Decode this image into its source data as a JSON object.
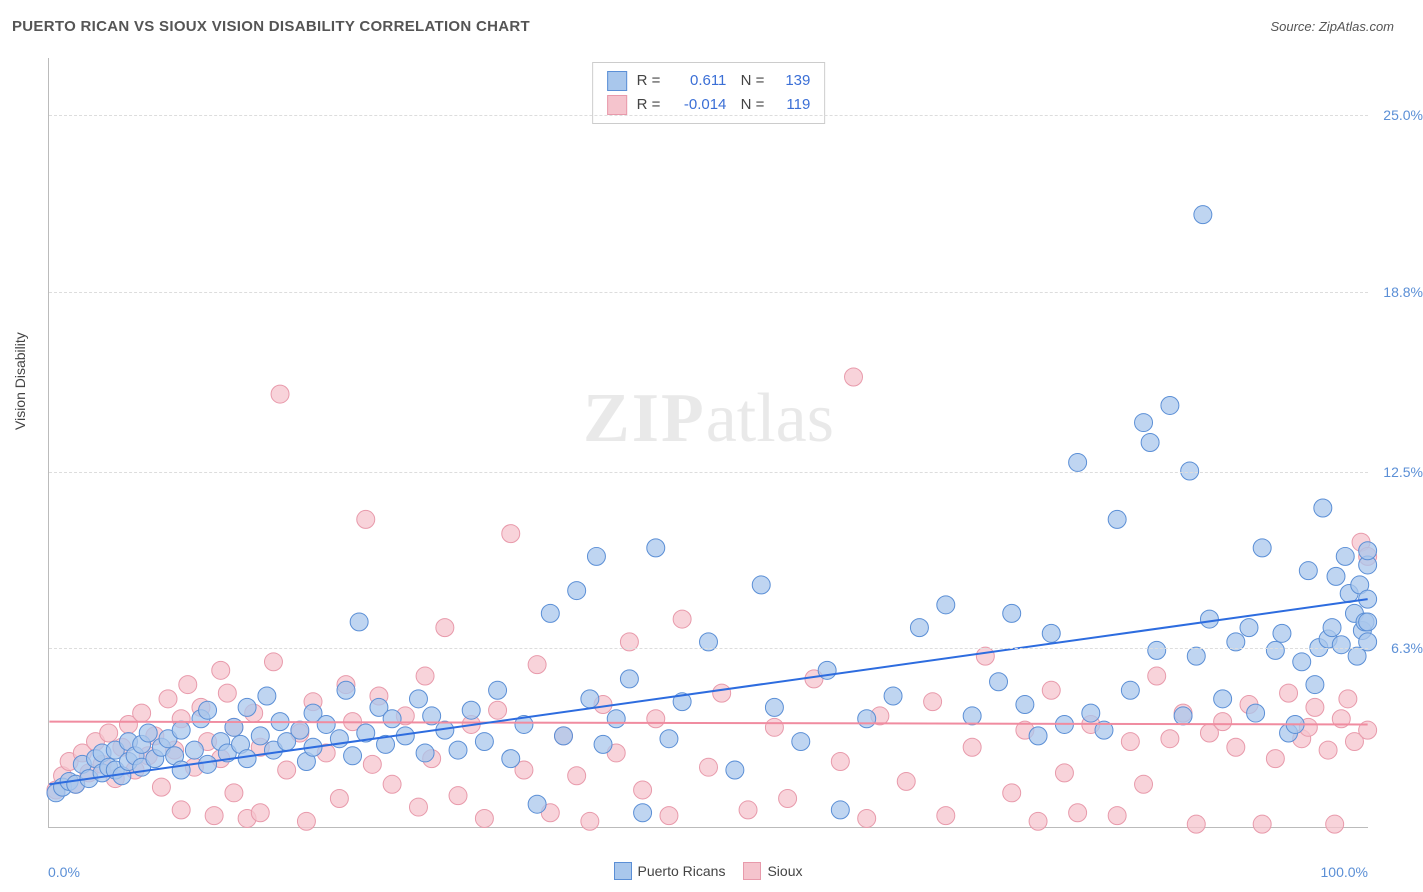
{
  "header": {
    "title": "PUERTO RICAN VS SIOUX VISION DISABILITY CORRELATION CHART",
    "source": "Source: ZipAtlas.com"
  },
  "watermark": {
    "left": "ZIP",
    "right": "atlas"
  },
  "chart": {
    "type": "scatter",
    "y_axis_title": "Vision Disability",
    "x_min_label": "0.0%",
    "x_max_label": "100.0%",
    "xlim": [
      0,
      100
    ],
    "ylim": [
      0,
      27
    ],
    "y_ticks": [
      {
        "v": 6.3,
        "label": "6.3%"
      },
      {
        "v": 12.5,
        "label": "12.5%"
      },
      {
        "v": 18.8,
        "label": "18.8%"
      },
      {
        "v": 25.0,
        "label": "25.0%"
      }
    ],
    "series": {
      "blue": {
        "name": "Puerto Ricans",
        "fill_color": "#a9c7ec",
        "stroke_color": "#5b8fd6",
        "marker_radius": 9,
        "marker_opacity": 0.75,
        "R": "0.611",
        "N": "139",
        "trend": {
          "x1": 0,
          "y1": 1.5,
          "x2": 100,
          "y2": 8.0,
          "color": "#2d6cdf",
          "width": 2
        },
        "points": [
          [
            0.5,
            1.2
          ],
          [
            1,
            1.4
          ],
          [
            1.5,
            1.6
          ],
          [
            2,
            1.5
          ],
          [
            2.5,
            2.2
          ],
          [
            3,
            1.7
          ],
          [
            3.5,
            2.4
          ],
          [
            4,
            1.9
          ],
          [
            4,
            2.6
          ],
          [
            4.5,
            2.1
          ],
          [
            5,
            2.0
          ],
          [
            5,
            2.7
          ],
          [
            5.5,
            1.8
          ],
          [
            6,
            2.3
          ],
          [
            6,
            3.0
          ],
          [
            6.5,
            2.5
          ],
          [
            7,
            2.1
          ],
          [
            7,
            2.9
          ],
          [
            7.5,
            3.3
          ],
          [
            8,
            2.4
          ],
          [
            8.5,
            2.8
          ],
          [
            9,
            3.1
          ],
          [
            9.5,
            2.5
          ],
          [
            10,
            3.4
          ],
          [
            10,
            2.0
          ],
          [
            11,
            2.7
          ],
          [
            11.5,
            3.8
          ],
          [
            12,
            2.2
          ],
          [
            12,
            4.1
          ],
          [
            13,
            3.0
          ],
          [
            13.5,
            2.6
          ],
          [
            14,
            3.5
          ],
          [
            14.5,
            2.9
          ],
          [
            15,
            4.2
          ],
          [
            15,
            2.4
          ],
          [
            16,
            3.2
          ],
          [
            16.5,
            4.6
          ],
          [
            17,
            2.7
          ],
          [
            17.5,
            3.7
          ],
          [
            18,
            3.0
          ],
          [
            19,
            3.4
          ],
          [
            19.5,
            2.3
          ],
          [
            20,
            4.0
          ],
          [
            20,
            2.8
          ],
          [
            21,
            3.6
          ],
          [
            22,
            3.1
          ],
          [
            22.5,
            4.8
          ],
          [
            23,
            2.5
          ],
          [
            23.5,
            7.2
          ],
          [
            24,
            3.3
          ],
          [
            25,
            4.2
          ],
          [
            25.5,
            2.9
          ],
          [
            26,
            3.8
          ],
          [
            27,
            3.2
          ],
          [
            28,
            4.5
          ],
          [
            28.5,
            2.6
          ],
          [
            29,
            3.9
          ],
          [
            30,
            3.4
          ],
          [
            31,
            2.7
          ],
          [
            32,
            4.1
          ],
          [
            33,
            3.0
          ],
          [
            34,
            4.8
          ],
          [
            35,
            2.4
          ],
          [
            36,
            3.6
          ],
          [
            37,
            0.8
          ],
          [
            38,
            7.5
          ],
          [
            39,
            3.2
          ],
          [
            40,
            8.3
          ],
          [
            41,
            4.5
          ],
          [
            41.5,
            9.5
          ],
          [
            42,
            2.9
          ],
          [
            43,
            3.8
          ],
          [
            44,
            5.2
          ],
          [
            45,
            0.5
          ],
          [
            46,
            9.8
          ],
          [
            47,
            3.1
          ],
          [
            48,
            4.4
          ],
          [
            50,
            6.5
          ],
          [
            52,
            2.0
          ],
          [
            54,
            8.5
          ],
          [
            55,
            4.2
          ],
          [
            57,
            3.0
          ],
          [
            59,
            5.5
          ],
          [
            60,
            0.6
          ],
          [
            62,
            3.8
          ],
          [
            64,
            4.6
          ],
          [
            66,
            7.0
          ],
          [
            68,
            7.8
          ],
          [
            70,
            3.9
          ],
          [
            72,
            5.1
          ],
          [
            73,
            7.5
          ],
          [
            74,
            4.3
          ],
          [
            75,
            3.2
          ],
          [
            76,
            6.8
          ],
          [
            77,
            3.6
          ],
          [
            78,
            12.8
          ],
          [
            79,
            4.0
          ],
          [
            80,
            3.4
          ],
          [
            81,
            10.8
          ],
          [
            82,
            4.8
          ],
          [
            83,
            14.2
          ],
          [
            83.5,
            13.5
          ],
          [
            84,
            6.2
          ],
          [
            85,
            14.8
          ],
          [
            86,
            3.9
          ],
          [
            86.5,
            12.5
          ],
          [
            87,
            6.0
          ],
          [
            87.5,
            21.5
          ],
          [
            88,
            7.3
          ],
          [
            89,
            4.5
          ],
          [
            90,
            6.5
          ],
          [
            91,
            7.0
          ],
          [
            91.5,
            4.0
          ],
          [
            92,
            9.8
          ],
          [
            93,
            6.2
          ],
          [
            93.5,
            6.8
          ],
          [
            94,
            3.3
          ],
          [
            94.5,
            3.6
          ],
          [
            95,
            5.8
          ],
          [
            95.5,
            9.0
          ],
          [
            96,
            5.0
          ],
          [
            96.3,
            6.3
          ],
          [
            96.6,
            11.2
          ],
          [
            97,
            6.6
          ],
          [
            97.3,
            7.0
          ],
          [
            97.6,
            8.8
          ],
          [
            98,
            6.4
          ],
          [
            98.3,
            9.5
          ],
          [
            98.6,
            8.2
          ],
          [
            99,
            7.5
          ],
          [
            99.2,
            6.0
          ],
          [
            99.4,
            8.5
          ],
          [
            99.6,
            6.9
          ],
          [
            99.8,
            7.2
          ],
          [
            100,
            9.2
          ],
          [
            100,
            9.7
          ],
          [
            100,
            8.0
          ],
          [
            100,
            7.2
          ],
          [
            100,
            6.5
          ]
        ]
      },
      "pink": {
        "name": "Sioux",
        "fill_color": "#f5c4cd",
        "stroke_color": "#e89aab",
        "marker_radius": 9,
        "marker_opacity": 0.75,
        "R": "-0.014",
        "N": "119",
        "trend": {
          "x1": 0,
          "y1": 3.7,
          "x2": 100,
          "y2": 3.6,
          "color": "#f08ca0",
          "width": 2
        },
        "points": [
          [
            0.5,
            1.3
          ],
          [
            1,
            1.8
          ],
          [
            1.5,
            2.3
          ],
          [
            2,
            1.5
          ],
          [
            2.5,
            2.6
          ],
          [
            3,
            1.9
          ],
          [
            3.5,
            3.0
          ],
          [
            4,
            2.2
          ],
          [
            4.5,
            3.3
          ],
          [
            5,
            1.7
          ],
          [
            5.5,
            2.8
          ],
          [
            6,
            3.6
          ],
          [
            6.5,
            2.0
          ],
          [
            7,
            4.0
          ],
          [
            7.5,
            2.5
          ],
          [
            8,
            3.2
          ],
          [
            8.5,
            1.4
          ],
          [
            9,
            4.5
          ],
          [
            9.5,
            2.7
          ],
          [
            10,
            3.8
          ],
          [
            10,
            0.6
          ],
          [
            10.5,
            5.0
          ],
          [
            11,
            2.1
          ],
          [
            11.5,
            4.2
          ],
          [
            12,
            3.0
          ],
          [
            12.5,
            0.4
          ],
          [
            13,
            5.5
          ],
          [
            13,
            2.4
          ],
          [
            13.5,
            4.7
          ],
          [
            14,
            1.2
          ],
          [
            14,
            3.5
          ],
          [
            15,
            0.3
          ],
          [
            15.5,
            4.0
          ],
          [
            16,
            2.8
          ],
          [
            16,
            0.5
          ],
          [
            17,
            5.8
          ],
          [
            17.5,
            15.2
          ],
          [
            18,
            2.0
          ],
          [
            19,
            3.3
          ],
          [
            19.5,
            0.2
          ],
          [
            20,
            4.4
          ],
          [
            21,
            2.6
          ],
          [
            22,
            1.0
          ],
          [
            22.5,
            5.0
          ],
          [
            23,
            3.7
          ],
          [
            24,
            10.8
          ],
          [
            24.5,
            2.2
          ],
          [
            25,
            4.6
          ],
          [
            26,
            1.5
          ],
          [
            27,
            3.9
          ],
          [
            28,
            0.7
          ],
          [
            28.5,
            5.3
          ],
          [
            29,
            2.4
          ],
          [
            30,
            7.0
          ],
          [
            31,
            1.1
          ],
          [
            32,
            3.6
          ],
          [
            33,
            0.3
          ],
          [
            34,
            4.1
          ],
          [
            35,
            10.3
          ],
          [
            36,
            2.0
          ],
          [
            37,
            5.7
          ],
          [
            38,
            0.5
          ],
          [
            39,
            3.2
          ],
          [
            40,
            1.8
          ],
          [
            41,
            0.2
          ],
          [
            42,
            4.3
          ],
          [
            43,
            2.6
          ],
          [
            44,
            6.5
          ],
          [
            45,
            1.3
          ],
          [
            46,
            3.8
          ],
          [
            47,
            0.4
          ],
          [
            48,
            7.3
          ],
          [
            50,
            2.1
          ],
          [
            51,
            4.7
          ],
          [
            53,
            0.6
          ],
          [
            55,
            3.5
          ],
          [
            56,
            1.0
          ],
          [
            58,
            5.2
          ],
          [
            60,
            2.3
          ],
          [
            61,
            15.8
          ],
          [
            62,
            0.3
          ],
          [
            63,
            3.9
          ],
          [
            65,
            1.6
          ],
          [
            67,
            4.4
          ],
          [
            68,
            0.4
          ],
          [
            70,
            2.8
          ],
          [
            71,
            6.0
          ],
          [
            73,
            1.2
          ],
          [
            74,
            3.4
          ],
          [
            75,
            0.2
          ],
          [
            76,
            4.8
          ],
          [
            77,
            1.9
          ],
          [
            78,
            0.5
          ],
          [
            79,
            3.6
          ],
          [
            81,
            0.4
          ],
          [
            82,
            3.0
          ],
          [
            83,
            1.5
          ],
          [
            84,
            5.3
          ],
          [
            85,
            3.1
          ],
          [
            86,
            4.0
          ],
          [
            87,
            0.1
          ],
          [
            88,
            3.3
          ],
          [
            89,
            3.7
          ],
          [
            90,
            2.8
          ],
          [
            91,
            4.3
          ],
          [
            92,
            0.1
          ],
          [
            93,
            2.4
          ],
          [
            94,
            4.7
          ],
          [
            95,
            3.1
          ],
          [
            95.5,
            3.5
          ],
          [
            96,
            4.2
          ],
          [
            97,
            2.7
          ],
          [
            97.5,
            0.1
          ],
          [
            98,
            3.8
          ],
          [
            98.5,
            4.5
          ],
          [
            99,
            3.0
          ],
          [
            99.5,
            10.0
          ],
          [
            100,
            3.4
          ],
          [
            100,
            9.5
          ]
        ]
      }
    },
    "legend_swatch_blue": {
      "fill": "#a9c7ec",
      "stroke": "#5b8fd6"
    },
    "legend_swatch_pink": {
      "fill": "#f5c4cd",
      "stroke": "#e89aab"
    }
  }
}
